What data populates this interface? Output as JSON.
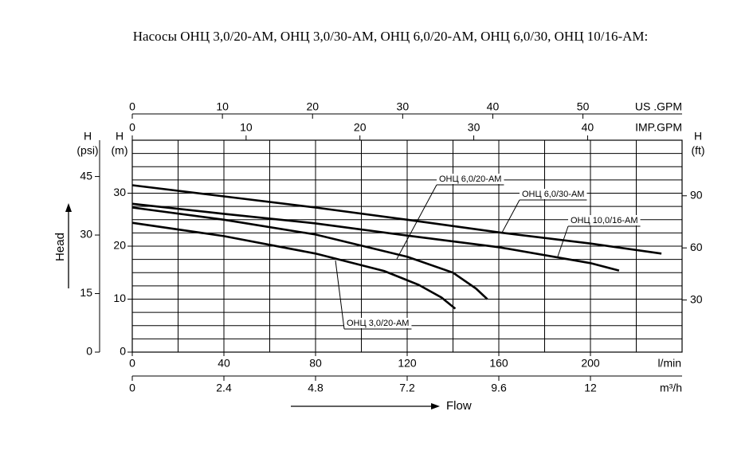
{
  "chart_data": {
    "type": "line",
    "title": "Насосы ОНЦ 3,0/20-АМ, ОНЦ 3,0/30-АМ, ОНЦ 6,0/20-АМ, ОНЦ 6,0/30, ОНЦ 10/16-АМ:",
    "x_label": "Flow",
    "x_unit": "l/min",
    "xlim": [
      0,
      240
    ],
    "xticks": [
      0,
      40,
      80,
      120,
      160,
      200
    ],
    "x_grid": [
      0,
      20,
      40,
      60,
      80,
      100,
      120,
      140,
      160,
      180,
      200,
      220,
      240
    ],
    "y_label": "Head",
    "y_name": "H",
    "y_unit": "(m)",
    "ylim": [
      0,
      40
    ],
    "yticks": [
      0,
      10,
      20,
      30
    ],
    "y_grid": [
      0,
      2.5,
      5,
      7.5,
      10,
      12.5,
      15,
      17.5,
      20,
      22.5,
      25,
      27.5,
      30,
      32.5,
      35,
      37.5,
      40
    ],
    "extra_axes": [
      {
        "side": "top",
        "label": "US .GPM",
        "lim": [
          0,
          61
        ],
        "ticks": [
          0,
          10,
          20,
          30,
          40,
          50
        ]
      },
      {
        "side": "top",
        "label": "IMP.GPM",
        "lim": [
          0,
          48.3
        ],
        "ticks": [
          0,
          10,
          20,
          30,
          40
        ]
      },
      {
        "side": "bottom",
        "label": "m³/h",
        "lim": [
          0,
          14.4
        ],
        "ticks": [
          0,
          2.4,
          4.8,
          7.2,
          9.6,
          12
        ]
      },
      {
        "side": "left",
        "name": "H",
        "label": "(psi)",
        "lim": [
          0,
          54.3
        ],
        "ticks": [
          0,
          15,
          30,
          45
        ]
      },
      {
        "side": "right",
        "name": "H",
        "label": "(ft)",
        "lim": [
          0,
          122
        ],
        "ticks": [
          30,
          60,
          90
        ]
      }
    ],
    "series": [
      {
        "name": "ОНЦ 6,0/30-АМ",
        "color": "#000000",
        "x": [
          0,
          40,
          80,
          120,
          160,
          200,
          231
        ],
        "values": [
          31.5,
          29.4,
          27.3,
          25,
          22.6,
          20.5,
          18.6
        ]
      },
      {
        "name": "ОНЦ 10,0/16-АМ",
        "color": "#000000",
        "x": [
          0,
          40,
          80,
          120,
          160,
          200,
          212.5
        ],
        "values": [
          28,
          26.1,
          24.3,
          22,
          19.8,
          16.8,
          15.4
        ]
      },
      {
        "name": "ОНЦ 6,0/20-АМ",
        "color": "#000000",
        "x": [
          0,
          40,
          80,
          120,
          140,
          150,
          155
        ],
        "values": [
          27.3,
          25,
          22.2,
          18,
          15,
          12,
          10
        ]
      },
      {
        "name": "ОНЦ 3,0/20-АМ",
        "color": "#000000",
        "x": [
          0,
          40,
          80,
          110,
          125,
          135,
          141
        ],
        "values": [
          24.4,
          21.9,
          18.6,
          15.3,
          12.7,
          10.3,
          8.2
        ]
      }
    ]
  }
}
